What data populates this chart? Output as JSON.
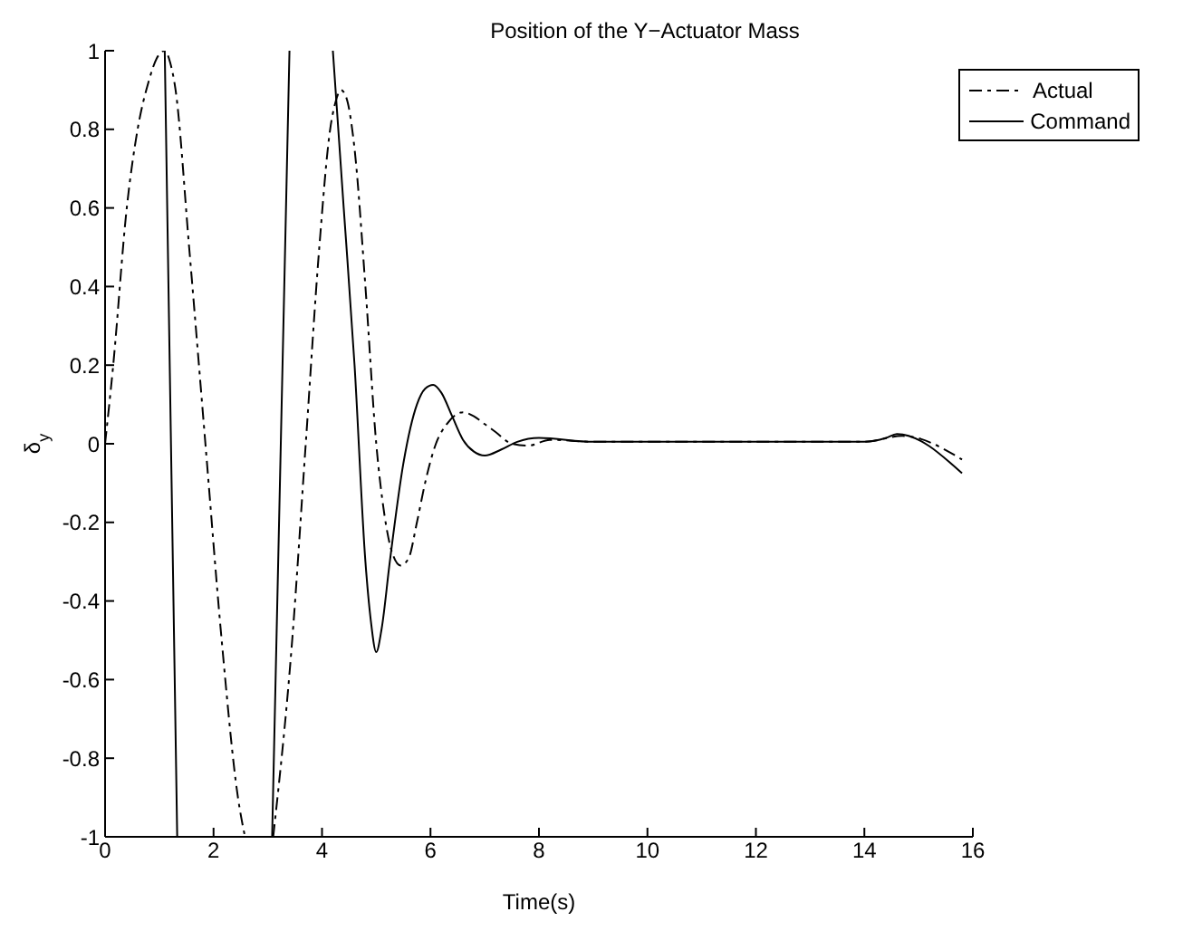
{
  "chart_data": {
    "type": "line",
    "title": "Position of the Y−Actuator Mass",
    "xlabel": "Time(s)",
    "ylabel": "δ$_{y}$",
    "xlim": [
      0,
      16
    ],
    "xticks": [
      0,
      2,
      4,
      6,
      8,
      10,
      12,
      14,
      16
    ],
    "ylim": [
      -1,
      1
    ],
    "yticks": [
      -1,
      -0.8,
      -0.6,
      -0.4,
      -0.2,
      0,
      0.2,
      0.4,
      0.6,
      0.8,
      1
    ],
    "legend": "top right",
    "series": [
      {
        "name": "Actual",
        "color": "#000000",
        "line_style": "dashed",
        "x": [
          0,
          0.15,
          0.4,
          0.6,
          0.8,
          0.95,
          1.1,
          1.2,
          1.3,
          1.55,
          1.85,
          2.15,
          2.45,
          2.58,
          2.8,
          3.1,
          3.45,
          3.7,
          3.95,
          4.15,
          4.25,
          4.35,
          4.45,
          4.6,
          4.8,
          5.0,
          5.15,
          5.3,
          5.45,
          5.6,
          5.75,
          5.9,
          6.1,
          6.3,
          6.6,
          6.8,
          7.0,
          7.2,
          7.5,
          7.8,
          8.2,
          9,
          14,
          14.7,
          15.8
        ],
        "values": [
          0,
          0.2,
          0.6,
          0.8,
          0.92,
          0.98,
          1.0,
          0.97,
          0.9,
          0.5,
          0,
          -0.5,
          -0.9,
          -1,
          null,
          -1,
          -0.5,
          0,
          0.5,
          0.8,
          0.87,
          0.9,
          0.88,
          0.75,
          0.4,
          0,
          -0.18,
          -0.28,
          -0.31,
          -0.29,
          -0.2,
          -0.1,
          0,
          0.05,
          0.08,
          0.07,
          0.05,
          0.03,
          0,
          -0.005,
          0.01,
          0.005,
          0.005,
          0.02,
          -0.04
        ]
      },
      {
        "name": "Command",
        "color": "#000000",
        "line_style": "solid",
        "x": [
          1.1,
          1.33,
          2.2,
          3.08,
          3.4,
          3.8,
          4.2,
          4.4,
          4.6,
          4.8,
          4.9,
          5.0,
          5.1,
          5.25,
          5.5,
          5.75,
          5.9,
          6.05,
          6.2,
          6.4,
          6.6,
          6.8,
          7.0,
          7.3,
          7.6,
          8,
          9,
          14,
          14.4,
          14.6,
          15.8
        ],
        "values": [
          1,
          -1,
          null,
          -1,
          1,
          null,
          1,
          0.6,
          0.2,
          -0.3,
          -0.45,
          -0.53,
          -0.47,
          -0.3,
          -0.05,
          0.1,
          0.14,
          0.15,
          0.13,
          0.07,
          0.01,
          -0.02,
          -0.03,
          -0.015,
          0.005,
          0.015,
          0.005,
          0.005,
          0.015,
          0.025,
          -0.075
        ]
      }
    ]
  }
}
